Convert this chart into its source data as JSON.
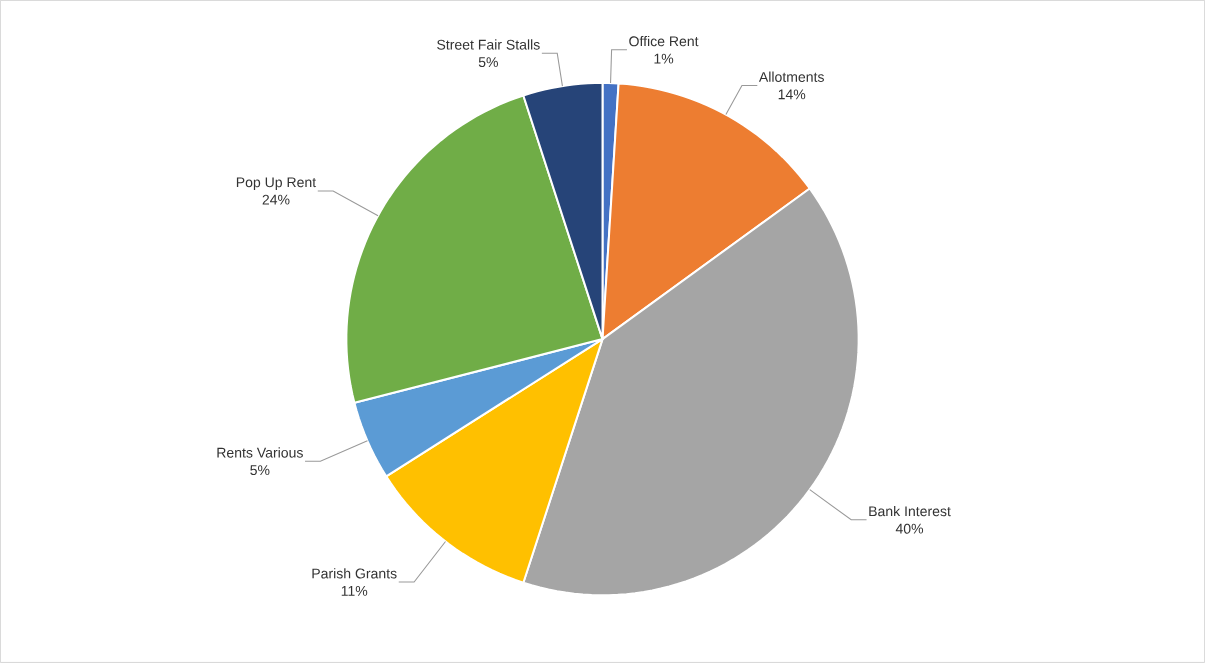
{
  "chart_data": {
    "type": "pie",
    "categories": [
      "Office Rent",
      "Allotments",
      "Bank Interest",
      "Parish Grants",
      "Rents Various",
      "Pop Up Rent",
      "Street Fair Stalls"
    ],
    "values": [
      1,
      14,
      40,
      11,
      5,
      24,
      5
    ],
    "colors": [
      "#4472c4",
      "#ed7d31",
      "#a5a5a5",
      "#ffc000",
      "#5b9bd5",
      "#70ad47",
      "#264478"
    ],
    "value_labels": [
      "1%",
      "14%",
      "40%",
      "11%",
      "5%",
      "24%",
      "5%"
    ]
  }
}
